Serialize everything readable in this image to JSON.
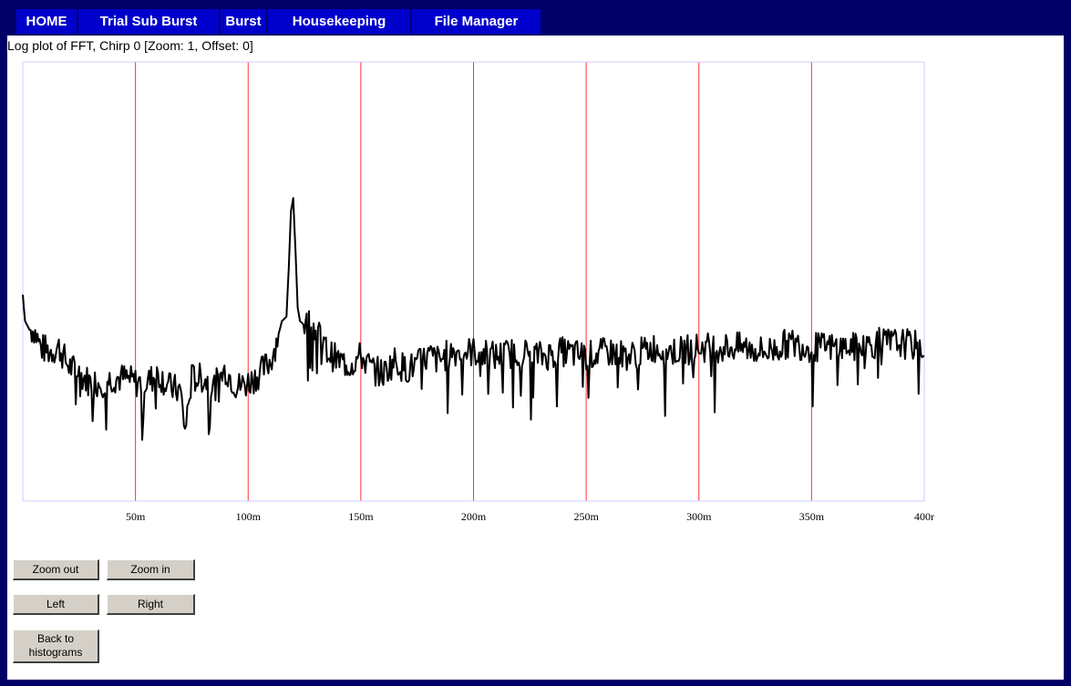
{
  "nav": {
    "tabs": [
      {
        "label": "HOME"
      },
      {
        "label": "Trial Sub Burst"
      },
      {
        "label": "Burst"
      },
      {
        "label": "Housekeeping"
      },
      {
        "label": "File Manager"
      }
    ]
  },
  "page": {
    "title": "Log plot of FFT, Chirp 0 [Zoom: 1, Offset: 0]"
  },
  "controls": {
    "zoom_out": "Zoom out",
    "zoom_in": "Zoom in",
    "left": "Left",
    "right": "Right",
    "back_line1": "Back to",
    "back_line2": "histograms"
  },
  "colors": {
    "nav_bar": "#000066",
    "nav_tab": "#0000cc",
    "gridline": "#ff3333",
    "frame": "#ccccff",
    "trace": "#000000"
  },
  "chart_data": {
    "type": "line",
    "title": "Log plot of FFT, Chirp 0 [Zoom: 1, Offset: 0]",
    "xlim": [
      0,
      400
    ],
    "ylim": [
      0,
      1
    ],
    "x_ticks": [
      50,
      100,
      150,
      200,
      250,
      300,
      350,
      400
    ],
    "x_tick_labels": [
      "50m",
      "100m",
      "150m",
      "200m",
      "250m",
      "300m",
      "350m",
      "400r"
    ],
    "grid": "vertical",
    "x": [
      0,
      1,
      3,
      5,
      8,
      12,
      16,
      20,
      25,
      30,
      35,
      40,
      45,
      50,
      55,
      60,
      65,
      70,
      72,
      75,
      80,
      85,
      90,
      95,
      100,
      105,
      110,
      113,
      115,
      117,
      118,
      119,
      120,
      121,
      122,
      123,
      125,
      128,
      130,
      135,
      140,
      145,
      150,
      155,
      160,
      165,
      170,
      175,
      180,
      185,
      190,
      200,
      210,
      220,
      230,
      240,
      250,
      260,
      270,
      280,
      290,
      300,
      310,
      320,
      330,
      340,
      350,
      360,
      370,
      380,
      390,
      400
    ],
    "y": [
      0.47,
      0.41,
      0.39,
      0.39,
      0.35,
      0.34,
      0.35,
      0.31,
      0.29,
      0.27,
      0.27,
      0.28,
      0.28,
      0.27,
      0.27,
      0.29,
      0.26,
      0.25,
      0.16,
      0.28,
      0.28,
      0.26,
      0.3,
      0.26,
      0.27,
      0.29,
      0.32,
      0.37,
      0.41,
      0.42,
      0.53,
      0.66,
      0.69,
      0.57,
      0.44,
      0.41,
      0.4,
      0.41,
      0.39,
      0.34,
      0.32,
      0.31,
      0.33,
      0.3,
      0.29,
      0.32,
      0.3,
      0.31,
      0.33,
      0.32,
      0.34,
      0.34,
      0.33,
      0.34,
      0.33,
      0.34,
      0.33,
      0.34,
      0.33,
      0.35,
      0.34,
      0.35,
      0.35,
      0.35,
      0.34,
      0.36,
      0.35,
      0.35,
      0.35,
      0.36,
      0.36,
      0.35
    ]
  }
}
